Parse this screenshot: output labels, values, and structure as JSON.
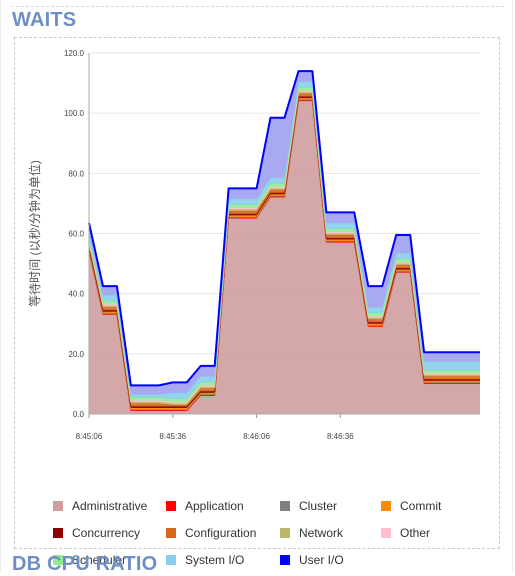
{
  "section_title": "WAITS",
  "next_section_title": "DB CPU RATIO",
  "chart_data": {
    "type": "area",
    "stacked": true,
    "ylabel": "等待时间 (以秒/分钟为单位)",
    "ylim": [
      0,
      120
    ],
    "y_ticks": [
      "0.0",
      "20.0",
      "40.0",
      "60.0",
      "80.0",
      "100.0",
      "120.0"
    ],
    "y_tick_values": [
      0,
      20,
      40,
      60,
      80,
      100,
      120
    ],
    "x_ticks": [
      "8:45:06",
      "8:45:36",
      "8:46:06",
      "8:46:36"
    ],
    "x_tick_values": [
      "8:45:06",
      "8:45:36",
      "8:46:06",
      "8:46:36"
    ],
    "x": [
      "8:45:06",
      "8:45:11",
      "8:45:16",
      "8:45:21",
      "8:45:26",
      "8:45:31",
      "8:45:36",
      "8:45:41",
      "8:45:46",
      "8:45:51",
      "8:45:56",
      "8:46:01",
      "8:46:06",
      "8:46:11",
      "8:46:16",
      "8:46:21",
      "8:46:26",
      "8:46:31",
      "8:46:36",
      "8:46:41",
      "8:46:46",
      "8:46:51",
      "8:46:56",
      "8:47:01",
      "8:47:06",
      "8:47:11",
      "8:47:16",
      "8:47:21",
      "8:47:26"
    ],
    "legend_position": "bottom",
    "series": [
      {
        "name": "Administrative",
        "color": "#cf9e9e",
        "values": [
          54.0,
          33.0,
          33.0,
          1.0,
          1.0,
          1.0,
          1.0,
          1.0,
          6.0,
          6.0,
          65.0,
          65.0,
          65.0,
          72.0,
          72.0,
          104.0,
          104.0,
          57.0,
          57.0,
          57.0,
          29.0,
          29.0,
          47.0,
          47.0,
          10.0,
          10.0,
          10.0,
          10.0,
          10.0
        ]
      },
      {
        "name": "Application",
        "color": "#ff0000",
        "values": [
          0.3,
          0.3,
          0.3,
          0.3,
          0.3,
          0.3,
          0.3,
          0.3,
          0.3,
          0.3,
          0.3,
          0.3,
          0.3,
          0.3,
          0.3,
          0.3,
          0.3,
          0.3,
          0.3,
          0.3,
          0.3,
          0.3,
          0.3,
          0.3,
          0.3,
          0.3,
          0.3,
          0.3,
          0.3
        ]
      },
      {
        "name": "Cluster",
        "color": "#808080",
        "values": [
          0.2,
          0.2,
          0.2,
          0.2,
          0.2,
          0.2,
          0.2,
          0.2,
          0.2,
          0.2,
          0.2,
          0.2,
          0.2,
          0.2,
          0.2,
          0.2,
          0.2,
          0.2,
          0.2,
          0.2,
          0.2,
          0.2,
          0.2,
          0.2,
          0.2,
          0.2,
          0.2,
          0.2,
          0.2
        ]
      },
      {
        "name": "Commit",
        "color": "#ff8c00",
        "values": [
          0.5,
          0.5,
          0.5,
          0.5,
          0.5,
          0.5,
          0.5,
          0.5,
          0.5,
          0.5,
          0.5,
          0.5,
          0.5,
          0.5,
          0.5,
          0.5,
          0.5,
          0.5,
          0.5,
          0.5,
          0.5,
          0.5,
          0.5,
          0.5,
          0.5,
          0.5,
          0.5,
          0.5,
          0.5
        ]
      },
      {
        "name": "Concurrency",
        "color": "#8b0000",
        "values": [
          0.5,
          0.5,
          0.5,
          0.5,
          0.5,
          0.5,
          0.5,
          0.5,
          0.5,
          0.5,
          0.5,
          0.5,
          0.5,
          0.5,
          0.5,
          0.5,
          0.5,
          0.5,
          0.5,
          0.5,
          0.5,
          0.5,
          0.5,
          0.5,
          0.5,
          0.5,
          0.5,
          0.5,
          0.5
        ]
      },
      {
        "name": "Configuration",
        "color": "#d2691e",
        "values": [
          1.0,
          1.0,
          1.0,
          1.0,
          1.0,
          1.0,
          0.5,
          0.5,
          1.0,
          1.0,
          1.0,
          1.0,
          1.0,
          1.0,
          1.0,
          1.0,
          1.0,
          1.0,
          1.0,
          1.0,
          1.0,
          1.0,
          1.0,
          1.0,
          1.0,
          1.0,
          1.0,
          1.0,
          1.0
        ]
      },
      {
        "name": "Network",
        "color": "#bdb76b",
        "values": [
          0.5,
          0.5,
          0.5,
          0.5,
          0.5,
          0.5,
          0.5,
          0.5,
          0.5,
          0.5,
          0.5,
          0.5,
          0.5,
          0.5,
          0.5,
          0.5,
          0.5,
          0.5,
          0.5,
          0.5,
          0.5,
          0.5,
          0.5,
          0.5,
          0.5,
          0.5,
          0.5,
          0.5,
          0.5
        ]
      },
      {
        "name": "Other",
        "color": "#ffc0cb",
        "values": [
          0.5,
          0.5,
          0.5,
          0.5,
          0.5,
          0.5,
          0.5,
          0.5,
          0.5,
          0.5,
          0.5,
          0.5,
          0.5,
          0.5,
          0.5,
          0.5,
          0.5,
          0.5,
          0.5,
          0.5,
          0.5,
          0.5,
          0.5,
          0.5,
          0.5,
          0.5,
          0.5,
          0.5,
          0.5
        ]
      },
      {
        "name": "Scheduler",
        "color": "#90ee90",
        "values": [
          1.0,
          1.0,
          1.0,
          1.0,
          1.0,
          1.0,
          1.0,
          1.0,
          1.0,
          1.0,
          1.0,
          1.0,
          1.0,
          1.0,
          1.0,
          1.0,
          1.0,
          1.0,
          1.0,
          1.0,
          1.0,
          1.0,
          1.0,
          1.0,
          1.0,
          1.0,
          1.0,
          1.0,
          1.0
        ]
      },
      {
        "name": "System I/O",
        "color": "#87ceeb",
        "values": [
          2.0,
          2.0,
          2.0,
          1.0,
          1.0,
          1.0,
          2.0,
          2.0,
          2.0,
          2.0,
          2.0,
          2.0,
          2.0,
          2.0,
          2.0,
          2.0,
          2.0,
          2.0,
          2.0,
          2.0,
          2.0,
          2.0,
          2.0,
          2.0,
          3.0,
          3.0,
          3.0,
          3.0,
          3.0
        ]
      },
      {
        "name": "User I/O",
        "color": "#0000ff",
        "values": [
          3.0,
          3.0,
          3.0,
          3.0,
          3.0,
          3.0,
          3.5,
          3.5,
          3.5,
          3.5,
          3.5,
          3.5,
          3.5,
          20.0,
          20.0,
          3.5,
          3.5,
          3.5,
          3.5,
          3.5,
          7.0,
          7.0,
          6.0,
          6.0,
          3.0,
          3.0,
          3.0,
          3.0,
          3.0
        ]
      }
    ]
  }
}
